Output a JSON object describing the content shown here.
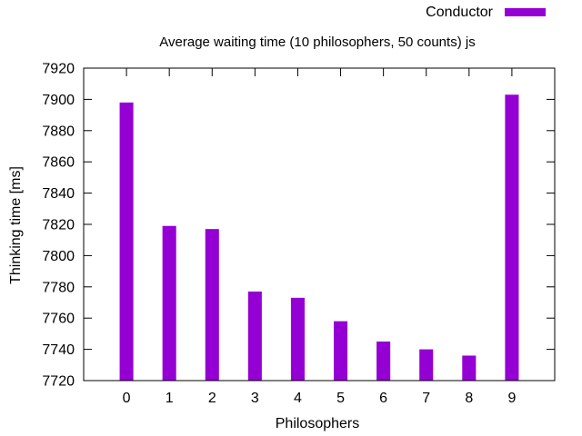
{
  "chart_data": {
    "type": "bar",
    "title": "Average waiting time (10 philosophers, 50 counts) js",
    "xlabel": "Philosophers",
    "ylabel": "Thinking time [ms]",
    "categories": [
      "0",
      "1",
      "2",
      "3",
      "4",
      "5",
      "6",
      "7",
      "8",
      "9"
    ],
    "series": [
      {
        "name": "Conductor",
        "color": "#9400d3",
        "values": [
          7898,
          7819,
          7817,
          7777,
          7773,
          7758,
          7745,
          7740,
          7736,
          7903
        ]
      }
    ],
    "ylim": [
      7720,
      7920
    ],
    "yticks": [
      7720,
      7740,
      7760,
      7780,
      7800,
      7820,
      7840,
      7860,
      7880,
      7900,
      7920
    ],
    "grid": false,
    "legend_position": "top-right"
  }
}
